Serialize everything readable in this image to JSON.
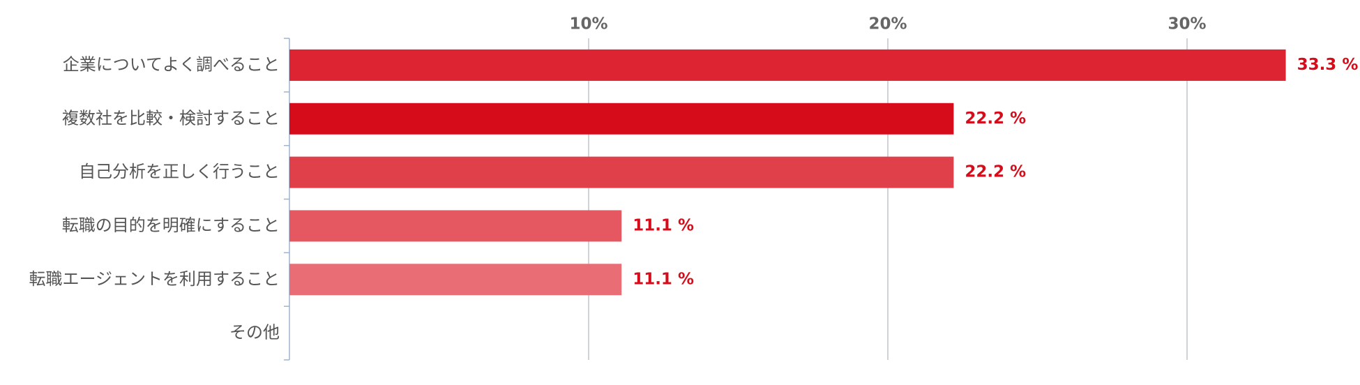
{
  "chart_data": {
    "type": "hbar",
    "categories": [
      "企業についてよく調べること",
      "複数社を比較・検討すること",
      "自己分析を正しく行うこと",
      "転職の目的を明確にすること",
      "転職エージェントを利用すること",
      "その他"
    ],
    "values": [
      33.3,
      22.2,
      22.2,
      11.1,
      11.1,
      null
    ],
    "value_labels": [
      "33.3 %",
      "22.2 %",
      "22.2 %",
      "11.1 %",
      "11.1 %",
      null
    ],
    "colors": [
      "#dc2433",
      "#d70c1a",
      "#e0404a",
      "#e55862",
      "#e96d75",
      null
    ],
    "xlim": [
      0,
      35
    ],
    "xticks": [
      {
        "value": 10,
        "label": "10%"
      },
      {
        "value": 20,
        "label": "20%"
      },
      {
        "value": 30,
        "label": "30%"
      }
    ],
    "grid": true
  }
}
